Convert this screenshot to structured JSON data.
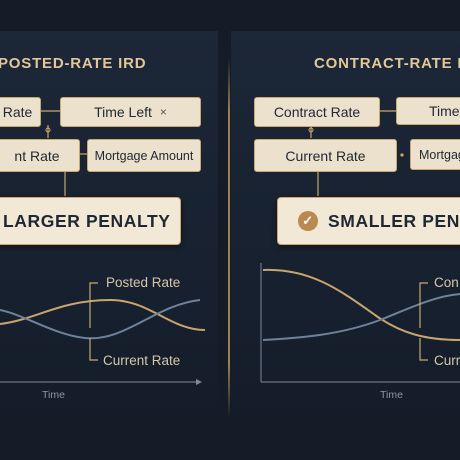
{
  "left": {
    "heading": "POSTED-RATE IRD",
    "box_rate": "Rate",
    "box_time_left": "Time Left",
    "box_time_left_mark": "×",
    "box_current_rate": "nt Rate",
    "box_mortgage_amount": "Mortgage Amount",
    "result": "LARGER PENALTY",
    "label_posted_rate": "Posted Rate",
    "label_current_rate": "Current Rate",
    "axis_label": "Time"
  },
  "right": {
    "heading": "CONTRACT-RATE IF",
    "box_contract_rate": "Contract Rate",
    "box_time": "Time",
    "box_current_rate": "Current Rate",
    "box_mortgage": "Mortgag",
    "result": "SMALLER PENAL",
    "label_top": "Con",
    "label_bottom": "Curr",
    "axis_label": "Time"
  },
  "colors": {
    "background": "#141c28",
    "accent": "#c9a86f",
    "card": "#ece1cd",
    "line_gold": "#c9a46e",
    "line_blue": "#6f8299"
  }
}
